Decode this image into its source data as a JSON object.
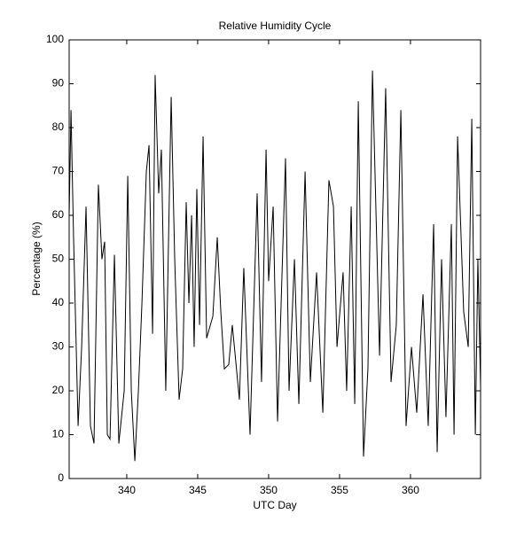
{
  "chart_data": {
    "type": "line",
    "title": "Relative Humidity Cycle",
    "xlabel": "UTC Day",
    "ylabel": "Percentage (%)",
    "xlim": [
      335.94,
      364.94
    ],
    "xticks": [
      340,
      345,
      350,
      355,
      360
    ],
    "ylim": [
      0,
      100
    ],
    "yticks": [
      0,
      10,
      20,
      30,
      40,
      50,
      60,
      70,
      80,
      90,
      100
    ],
    "grid": false,
    "series": [
      {
        "color": "#000000",
        "x": [
          335.94,
          336.07,
          336.25,
          336.57,
          336.82,
          337.13,
          337.44,
          337.69,
          338.0,
          338.25,
          338.44,
          338.63,
          338.82,
          339.13,
          339.44,
          339.82,
          340.07,
          340.32,
          340.57,
          340.82,
          341.07,
          341.38,
          341.57,
          341.82,
          342.0,
          342.25,
          342.44,
          342.75,
          343.13,
          343.38,
          343.69,
          343.94,
          344.19,
          344.38,
          344.57,
          344.75,
          344.94,
          345.13,
          345.38,
          345.63,
          346.07,
          346.38,
          346.63,
          346.88,
          347.19,
          347.44,
          347.94,
          348.25,
          348.69,
          349.19,
          349.5,
          349.82,
          350.0,
          350.32,
          350.63,
          351.19,
          351.44,
          351.82,
          352.13,
          352.57,
          352.94,
          353.38,
          353.82,
          354.25,
          354.57,
          354.82,
          355.25,
          355.5,
          355.82,
          356.07,
          356.32,
          356.69,
          357.0,
          357.32,
          357.82,
          358.25,
          358.63,
          359.0,
          359.32,
          359.69,
          360.07,
          360.44,
          360.88,
          361.25,
          361.63,
          361.88,
          362.19,
          362.5,
          362.88,
          363.07,
          363.32,
          363.75,
          364.07,
          364.32,
          364.57,
          364.75,
          364.94
        ],
        "values": [
          60,
          84,
          55,
          12,
          30,
          62,
          12,
          8,
          67,
          50,
          54,
          10,
          9,
          51,
          8,
          20,
          69,
          20,
          4,
          20,
          40,
          70,
          76,
          33,
          92,
          65,
          75,
          20,
          87,
          50,
          18,
          25,
          63,
          40,
          60,
          30,
          66,
          35,
          78,
          32,
          37,
          55,
          38,
          25,
          26,
          35,
          18,
          48,
          10,
          65,
          22,
          75,
          45,
          62,
          13,
          73,
          20,
          50,
          17,
          70,
          22,
          47,
          15,
          68,
          62,
          30,
          47,
          20,
          62,
          17,
          86,
          5,
          25,
          93,
          28,
          89,
          22,
          35,
          84,
          12,
          30,
          15,
          42,
          12,
          58,
          6,
          50,
          14,
          58,
          10,
          78,
          38,
          30,
          82,
          10,
          50,
          21
        ]
      }
    ]
  }
}
